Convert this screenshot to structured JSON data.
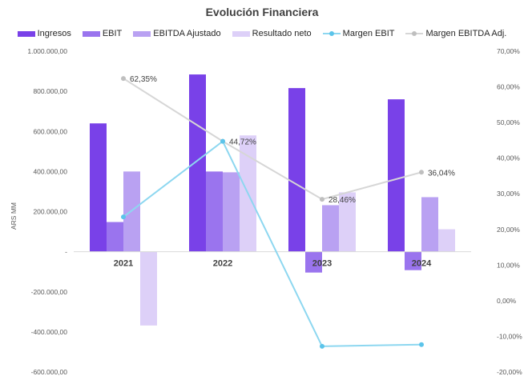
{
  "chart_data": {
    "type": "bar",
    "title": "Evolución Financiera",
    "ylabel": "ARS MM",
    "ylim": [
      -600000,
      1000000
    ],
    "y2lim": [
      -20,
      70
    ],
    "categories": [
      "2021",
      "2022",
      "2023",
      "2024"
    ],
    "left_ticks": [
      "1.000.000,00",
      "800.000,00",
      "600.000,00",
      "400.000,00",
      "200.000,00",
      "-",
      "-200.000,00",
      "-400.000,00",
      "-600.000,00"
    ],
    "right_ticks": [
      "70,00%",
      "60,00%",
      "50,00%",
      "40,00%",
      "30,00%",
      "20,00%",
      "10,00%",
      "0,00%",
      "-10,00%",
      "-20,00%"
    ],
    "series": [
      {
        "name": "Ingresos",
        "type": "bar",
        "color": "#7941E8",
        "values": [
          640000,
          884000,
          816000,
          760000
        ]
      },
      {
        "name": "EBIT",
        "type": "bar",
        "color": "#9A74EE",
        "values": [
          148000,
          400000,
          -104000,
          -92000
        ]
      },
      {
        "name": "EBITDA Ajustado",
        "type": "bar",
        "color": "#B9A1F2",
        "values": [
          400000,
          396000,
          232000,
          272000
        ]
      },
      {
        "name": "Resultado neto",
        "type": "bar",
        "color": "#DDD0F8",
        "values": [
          -368000,
          580000,
          296000,
          112000
        ]
      },
      {
        "name": "Margen EBIT",
        "type": "line",
        "axis": "right",
        "color": "#8DD7F0",
        "marker": "#5BC4EA",
        "values": [
          23.5,
          44.72,
          -12.8,
          -12.3
        ]
      },
      {
        "name": "Margen EBITDA Adj.",
        "type": "line",
        "axis": "right",
        "color": "#D6D6D6",
        "marker": "#BFBFBF",
        "values": [
          62.35,
          44.72,
          28.46,
          36.04
        ],
        "labels": [
          "62,35%",
          "44,72%",
          "28,46%",
          "36,04%"
        ]
      }
    ]
  }
}
